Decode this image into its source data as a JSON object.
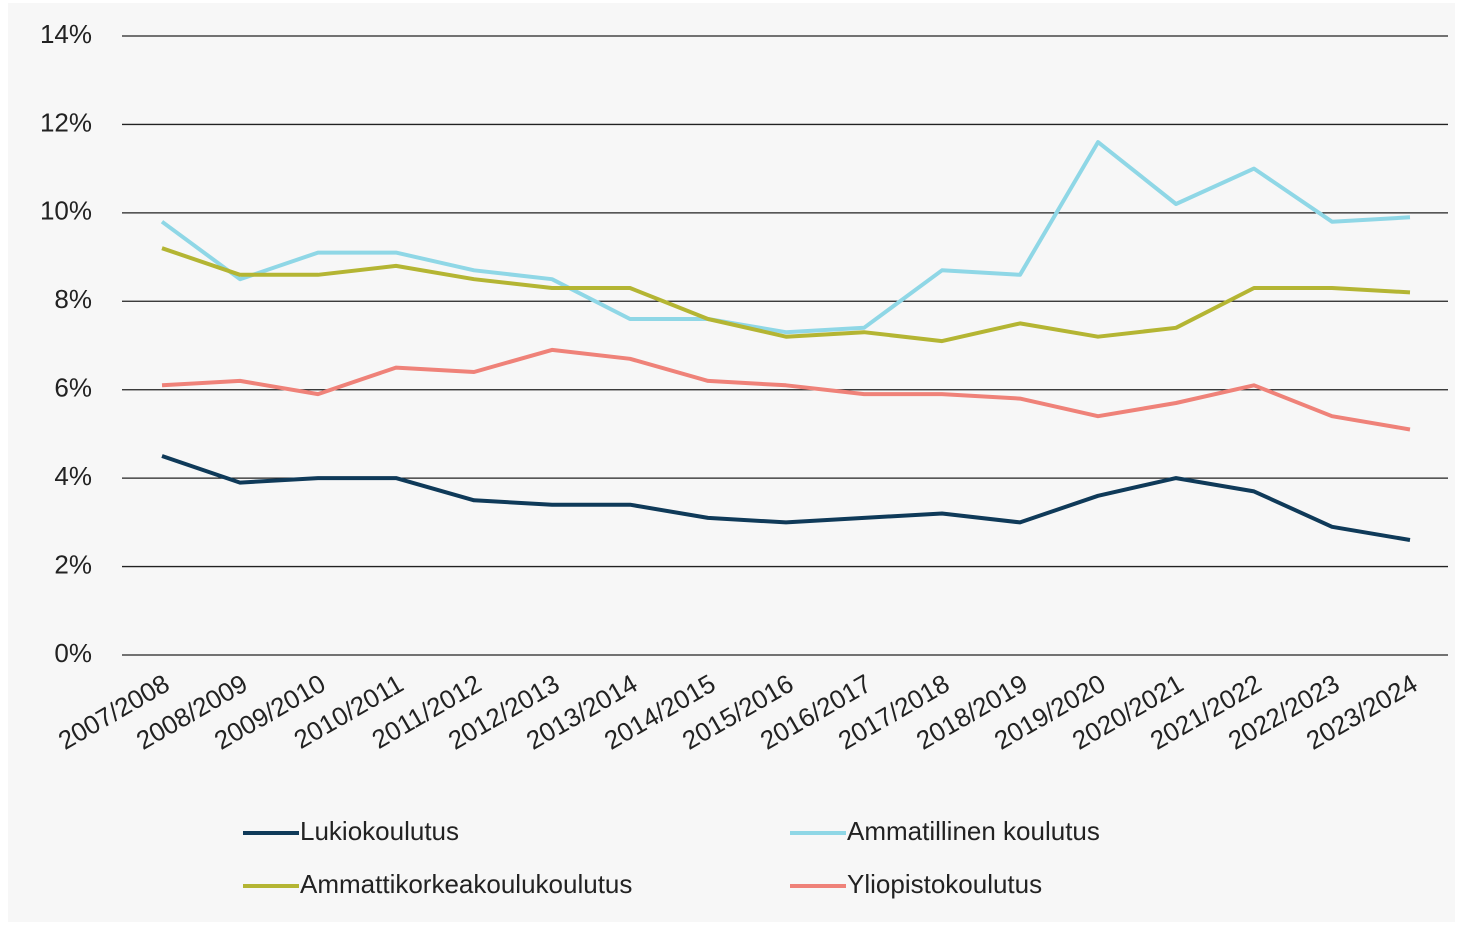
{
  "chart_data": {
    "type": "line",
    "categories": [
      "2007/2008",
      "2008/2009",
      "2009/2010",
      "2010/2011",
      "2011/2012",
      "2012/2013",
      "2013/2014",
      "2014/2015",
      "2015/2016",
      "2016/2017",
      "2017/2018",
      "2018/2019",
      "2019/2020",
      "2020/2021",
      "2021/2022",
      "2022/2023",
      "2023/2024"
    ],
    "series": [
      {
        "name": "Lukiokoulutus",
        "color": "#0f3a59",
        "values": [
          4.5,
          3.9,
          4.0,
          4.0,
          3.5,
          3.4,
          3.4,
          3.1,
          3.0,
          3.1,
          3.2,
          3.0,
          3.6,
          4.0,
          3.7,
          2.9,
          2.6
        ]
      },
      {
        "name": "Ammatillinen koulutus",
        "color": "#8fd7e6",
        "values": [
          9.8,
          8.5,
          9.1,
          9.1,
          8.7,
          8.5,
          7.6,
          7.6,
          7.3,
          7.4,
          8.7,
          8.6,
          11.6,
          10.2,
          11.0,
          9.8,
          9.9
        ]
      },
      {
        "name": "Ammattikorkeakoulukoulutus",
        "color": "#b4b533",
        "values": [
          9.2,
          8.6,
          8.6,
          8.8,
          8.5,
          8.3,
          8.3,
          7.6,
          7.2,
          7.3,
          7.1,
          7.5,
          7.2,
          7.4,
          8.3,
          8.3,
          8.2
        ]
      },
      {
        "name": "Yliopistokoulutus",
        "color": "#ef8279",
        "values": [
          6.1,
          6.2,
          5.9,
          6.5,
          6.4,
          6.9,
          6.7,
          6.2,
          6.1,
          5.9,
          5.9,
          5.8,
          5.4,
          5.7,
          6.1,
          5.4,
          5.1
        ]
      }
    ],
    "ylim": [
      0,
      14
    ],
    "yticks": [
      {
        "value": 0,
        "label": "0%"
      },
      {
        "value": 2,
        "label": "2%"
      },
      {
        "value": 4,
        "label": "4%"
      },
      {
        "value": 6,
        "label": "6%"
      },
      {
        "value": 8,
        "label": "8%"
      },
      {
        "value": 10,
        "label": "10%"
      },
      {
        "value": 12,
        "label": "12%"
      },
      {
        "value": 14,
        "label": "14%"
      }
    ],
    "grid": true,
    "legend": "bottom"
  }
}
